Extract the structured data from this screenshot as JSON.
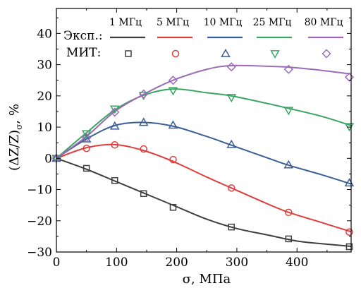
{
  "chart_data": {
    "type": "line",
    "xlabel": "σ, МПа",
    "ylabel": "(ΔZ/Z)σ, %",
    "ylabel_main": "(ΔZ/Z)",
    "ylabel_sub": "σ",
    "ylabel_unit": ", %",
    "xlim": [
      0,
      490
    ],
    "ylim": [
      -30,
      48
    ],
    "xticks": [
      0,
      100,
      200,
      300,
      400
    ],
    "yticks": [
      -30,
      -20,
      -10,
      0,
      10,
      20,
      30,
      40
    ],
    "xtick_labels": [
      "0",
      "100",
      "200",
      "300",
      "400"
    ],
    "ytick_labels": [
      "−30",
      "−20",
      "−10",
      "0",
      "10",
      "20",
      "30",
      "40"
    ],
    "legend_row_labels": {
      "experiment": "Эксп.:",
      "model": "МИТ:"
    },
    "legend_placement": "top",
    "grid": false,
    "series": [
      {
        "name": "1 МГц",
        "color": "#3f3f3f",
        "marker": "square",
        "x": [
          0,
          50,
          100,
          150,
          200,
          250,
          300,
          350,
          400,
          450,
          490
        ],
        "y": [
          0,
          -3.5,
          -7.5,
          -11.5,
          -15.5,
          -19.5,
          -22.5,
          -24.5,
          -26.5,
          -27.5,
          -28.2
        ],
        "model_x": [
          0,
          50,
          97,
          145,
          194,
          291,
          386,
          487
        ],
        "model_y": [
          0,
          -3.2,
          -7.1,
          -11.3,
          -15.7,
          -22.0,
          -25.8,
          -28.3
        ]
      },
      {
        "name": "5 МГц",
        "color": "#e03c3c",
        "marker": "circle",
        "x": [
          0,
          50,
          97,
          145,
          194,
          250,
          291,
          350,
          386,
          440,
          490
        ],
        "y": [
          0,
          3.4,
          4.4,
          2.5,
          -1.0,
          -6.0,
          -9.5,
          -14.5,
          -17.3,
          -20.5,
          -23.5
        ],
        "model_x": [
          0,
          50,
          97,
          145,
          194,
          291,
          386,
          487
        ],
        "model_y": [
          0,
          3.2,
          4.3,
          3.0,
          -0.4,
          -9.5,
          -17.3,
          -23.6
        ]
      },
      {
        "name": "10 МГц",
        "color": "#3b5f95",
        "marker": "triangle-up",
        "x": [
          0,
          50,
          97,
          145,
          194,
          250,
          291,
          350,
          386,
          440,
          490
        ],
        "y": [
          0,
          6.2,
          10.5,
          11.5,
          10.3,
          7.0,
          4.2,
          0.2,
          -2.2,
          -5.2,
          -8.2
        ],
        "model_x": [
          0,
          50,
          97,
          145,
          194,
          291,
          386,
          487
        ],
        "model_y": [
          0,
          6.2,
          10.3,
          11.5,
          10.6,
          4.4,
          -2.1,
          -7.9
        ]
      },
      {
        "name": "25 МГц",
        "color": "#3aa563",
        "marker": "triangle-down",
        "x": [
          0,
          50,
          97,
          145,
          194,
          250,
          291,
          350,
          386,
          440,
          490
        ],
        "y": [
          0,
          8.2,
          15.5,
          20.2,
          22.2,
          21.0,
          20.0,
          17.6,
          16.0,
          13.5,
          10.5
        ],
        "model_x": [
          0,
          50,
          97,
          145,
          194,
          291,
          386,
          487
        ],
        "model_y": [
          0,
          7.9,
          15.8,
          20.2,
          21.7,
          19.5,
          15.4,
          10.2
        ]
      },
      {
        "name": "80 МГц",
        "color": "#9b6bb5",
        "marker": "diamond",
        "x": [
          0,
          50,
          97,
          145,
          194,
          250,
          291,
          350,
          386,
          440,
          490
        ],
        "y": [
          0,
          7.0,
          15.0,
          20.5,
          25.0,
          28.5,
          29.7,
          29.5,
          29.2,
          28.2,
          27.0
        ],
        "model_x": [
          0,
          50,
          97,
          145,
          194,
          291,
          386,
          487
        ],
        "model_y": [
          0,
          6.6,
          14.8,
          20.6,
          25.0,
          29.3,
          28.5,
          26.0
        ]
      }
    ]
  }
}
